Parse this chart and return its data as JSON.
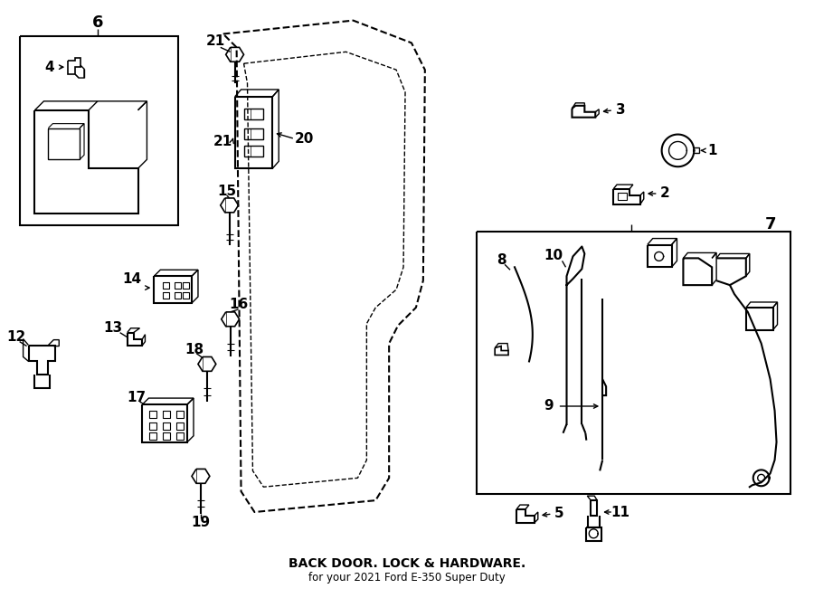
{
  "bg_color": "#ffffff",
  "line_color": "#000000",
  "fig_width": 9.0,
  "fig_height": 6.61,
  "title": "BACK DOOR. LOCK & HARDWARE.",
  "subtitle": "for your 2021 Ford E-350 Super Duty"
}
